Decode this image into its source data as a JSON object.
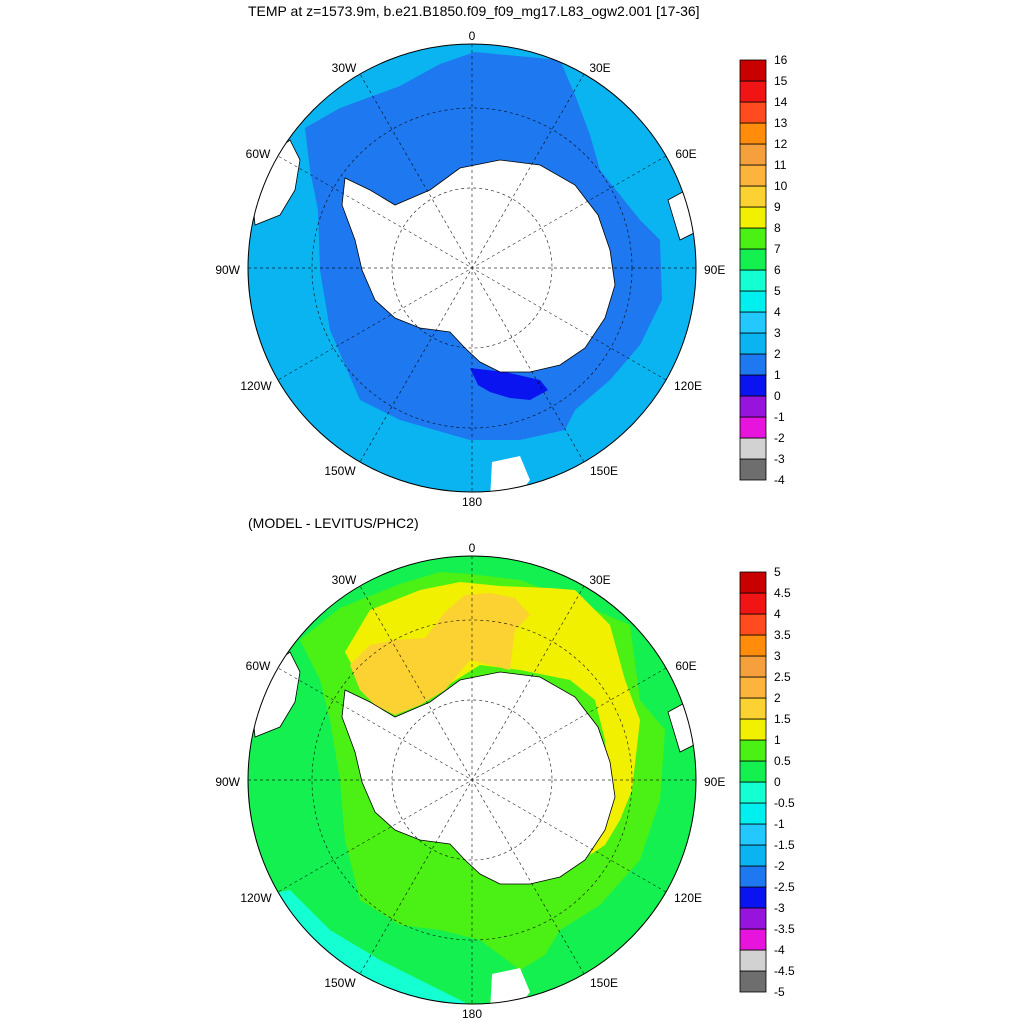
{
  "figure": {
    "panels": [
      {
        "id": "temp",
        "title": "TEMP at z=1573.9m, b.e21.B1850.f09_f09_mg17.L83_ogw2.001 [17-36]",
        "lon_labels": [
          "0",
          "30E",
          "60E",
          "90E",
          "120E",
          "150E",
          "180",
          "150W",
          "120W",
          "90W",
          "60W",
          "30W"
        ],
        "colorbar": {
          "labels": [
            "-4",
            "-3",
            "-2",
            "-1",
            "0",
            "1",
            "2",
            "3",
            "4",
            "5",
            "6",
            "7",
            "8",
            "9",
            "10",
            "11",
            "12",
            "13",
            "14",
            "15",
            "16"
          ],
          "colors": [
            "#6e6e6e",
            "#d2d2d2",
            "#e614dc",
            "#9614dc",
            "#0a14f0",
            "#1e78f0",
            "#0ab4f0",
            "#23c8ff",
            "#00f0f0",
            "#14ffd2",
            "#14f050",
            "#4bf014",
            "#f0f000",
            "#fcd232",
            "#fcb43c",
            "#f5a03c",
            "#ff8c0a",
            "#ff4b1e",
            "#f01414",
            "#c80000"
          ]
        },
        "chart_data": {
          "type": "heatmap",
          "projection": "south polar stereographic",
          "variable": "TEMP",
          "depth": "z=1573.9m",
          "case": "b.e21.B1850.f09_f09_mg17.L83_ogw2.001",
          "years": "[17-36]",
          "levels": [
            -4,
            -3,
            -2,
            -1,
            0,
            1,
            2,
            3,
            4,
            5,
            6,
            7,
            8,
            9,
            10,
            11,
            12,
            13,
            14,
            15,
            16
          ],
          "regions": [
            {
              "description": "outer ocean north of ~50S",
              "value_range": [
                2,
                3
              ]
            },
            {
              "description": "circumpolar band around Antarctica",
              "value_range": [
                1,
                2
              ]
            },
            {
              "description": "Ross Sea shelf edge",
              "value_range": [
                0,
                1
              ]
            }
          ]
        }
      },
      {
        "id": "diff",
        "title": "(MODEL - LEVITUS/PHC2)",
        "lon_labels": [
          "0",
          "30E",
          "60E",
          "90E",
          "120E",
          "150E",
          "180",
          "150W",
          "120W",
          "90W",
          "60W",
          "30W"
        ],
        "colorbar": {
          "labels": [
            "-5",
            "-4.5",
            "-4",
            "-3.5",
            "-3",
            "-2.5",
            "-2",
            "-1.5",
            "-1",
            "-0.5",
            "0",
            "0.5",
            "1",
            "1.5",
            "2",
            "2.5",
            "3",
            "3.5",
            "4",
            "4.5",
            "5"
          ],
          "colors": [
            "#6e6e6e",
            "#d2d2d2",
            "#e614dc",
            "#9614dc",
            "#0a14f0",
            "#1e78f0",
            "#0ab4f0",
            "#23c8ff",
            "#00f0f0",
            "#14ffd2",
            "#14f050",
            "#4bf014",
            "#f0f000",
            "#fcd232",
            "#fcb43c",
            "#f5a03c",
            "#ff8c0a",
            "#ff4b1e",
            "#f01414",
            "#c80000"
          ]
        },
        "chart_data": {
          "type": "heatmap",
          "projection": "south polar stereographic",
          "levels": [
            -5,
            -4.5,
            -4,
            -3.5,
            -3,
            -2.5,
            -2,
            -1.5,
            -1,
            -0.5,
            0,
            0.5,
            1,
            1.5,
            2,
            2.5,
            3,
            3.5,
            4,
            4.5,
            5
          ],
          "regions": [
            {
              "description": "outer ring",
              "value_range": [
                0,
                0.5
              ]
            },
            {
              "description": "middle ocean",
              "value_range": [
                0.5,
                1
              ]
            },
            {
              "description": "Weddell Sea / Atlantic-Indian sector",
              "value_range": [
                1,
                1.5
              ]
            },
            {
              "description": "Weddell Sea core",
              "value_range": [
                1.5,
                2
              ]
            },
            {
              "description": "Pacific outer sector",
              "value_range": [
                -0.5,
                0
              ]
            }
          ]
        }
      }
    ]
  }
}
